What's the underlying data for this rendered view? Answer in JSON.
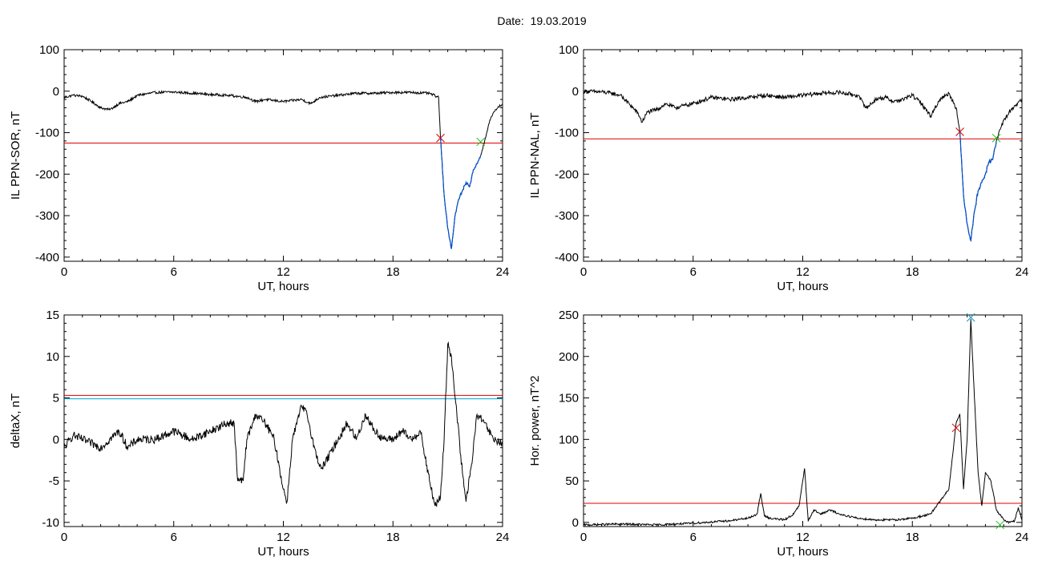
{
  "header": {
    "date_label": "Date:",
    "date_value": "19.03.2019"
  },
  "colors": {
    "trace": "#000000",
    "threshold": "#e00000",
    "threshold2": "#00a0c8",
    "storm": "#0050d0",
    "mark_start": "#d00000",
    "mark_end": "#20c020",
    "mark_peak": "#1090c0"
  },
  "chart_data": [
    {
      "type": "line",
      "id": "ppn-sor",
      "xlabel": "UT, hours",
      "ylabel": "IL PPN-SOR, nT",
      "xlim": [
        0,
        24
      ],
      "ylim": [
        -410,
        100
      ],
      "xticks": [
        "0",
        "6",
        "12",
        "18",
        "24"
      ],
      "yticks": [
        "100",
        "0",
        "-100",
        "-200",
        "-300",
        "-400"
      ],
      "ytick_values": [
        100,
        0,
        -100,
        -200,
        -300,
        -400
      ],
      "series": [
        {
          "x": [
            0,
            0.5,
            1,
            1.5,
            2,
            2.5,
            3,
            3.5,
            4,
            5,
            6,
            7,
            8,
            9,
            10,
            10.5,
            11,
            12,
            13,
            13.5,
            14,
            15,
            16,
            17,
            18,
            19,
            20,
            20.5,
            20.6,
            20.8,
            21,
            21.2,
            21.4,
            21.6,
            21.8,
            22,
            22.2,
            22.4,
            22.6,
            22.8,
            23,
            23.3,
            23.6,
            24
          ],
          "y": [
            -15,
            -10,
            -12,
            -25,
            -40,
            -45,
            -30,
            -25,
            -10,
            -3,
            -2,
            -5,
            -8,
            -10,
            -15,
            -25,
            -20,
            -25,
            -20,
            -30,
            -15,
            -10,
            -5,
            -5,
            -3,
            -3,
            -5,
            -15,
            -110,
            -250,
            -330,
            -380,
            -300,
            -260,
            -240,
            -220,
            -230,
            -190,
            -175,
            -155,
            -125,
            -70,
            -45,
            -30
          ],
          "noise": 3
        }
      ],
      "storm_segment": [
        20.6,
        22.8
      ],
      "threshold": -125,
      "mark_start": [
        20.6,
        -113
      ],
      "mark_end": [
        22.8,
        -122
      ]
    },
    {
      "type": "line",
      "id": "ppn-nal",
      "xlabel": "UT, hours",
      "ylabel": "IL PPN-NAL, nT",
      "xlim": [
        0,
        24
      ],
      "ylim": [
        -410,
        100
      ],
      "xticks": [
        "0",
        "6",
        "12",
        "18",
        "24"
      ],
      "yticks": [
        "100",
        "0",
        "-100",
        "-200",
        "-300",
        "-400"
      ],
      "ytick_values": [
        100,
        0,
        -100,
        -200,
        -300,
        -400
      ],
      "series": [
        {
          "x": [
            0,
            1,
            1.5,
            2,
            2.5,
            3,
            3.2,
            3.5,
            4,
            4.5,
            5,
            6,
            7,
            8,
            9,
            10,
            11,
            12,
            13,
            14,
            15,
            15.5,
            16,
            16.5,
            17,
            17.5,
            18,
            18.5,
            19,
            19.5,
            20,
            20.4,
            20.6,
            20.8,
            21,
            21.2,
            21.4,
            21.6,
            21.8,
            22,
            22.2,
            22.4,
            22.6,
            23,
            23.5,
            24
          ],
          "y": [
            0,
            -2,
            -5,
            -10,
            -30,
            -55,
            -75,
            -50,
            -45,
            -30,
            -40,
            -30,
            -15,
            -20,
            -15,
            -10,
            -15,
            -10,
            -5,
            -3,
            -10,
            -40,
            -20,
            -15,
            -25,
            -20,
            -10,
            -30,
            -60,
            -20,
            -5,
            -40,
            -100,
            -250,
            -320,
            -360,
            -290,
            -240,
            -220,
            -200,
            -170,
            -165,
            -120,
            -70,
            -40,
            -20
          ],
          "noise": 5
        }
      ],
      "storm_segment": [
        20.6,
        22.6
      ],
      "threshold": -115,
      "mark_start": [
        20.6,
        -98
      ],
      "mark_end": [
        22.6,
        -113
      ]
    },
    {
      "type": "line",
      "id": "deltax",
      "xlabel": "UT, hours",
      "ylabel": "deltaX, nT",
      "xlim": [
        0,
        24
      ],
      "ylim": [
        -10.5,
        15
      ],
      "xticks": [
        "0",
        "6",
        "12",
        "18",
        "24"
      ],
      "yticks": [
        "15",
        "10",
        "5",
        "0",
        "-5",
        "-10"
      ],
      "ytick_values": [
        15,
        10,
        5,
        0,
        -5,
        -10
      ],
      "series": [
        {
          "x": [
            0,
            0.5,
            1,
            2,
            3,
            3.5,
            4,
            5,
            6,
            7,
            8,
            9,
            9.3,
            9.5,
            9.8,
            10,
            10.5,
            11,
            11.5,
            12,
            12.2,
            12.5,
            13,
            13.3,
            13.8,
            14.1,
            14.5,
            15,
            15.5,
            16,
            16.5,
            17,
            17.5,
            18,
            18.5,
            19,
            19.5,
            20,
            20.3,
            20.6,
            20.8,
            21,
            21.2,
            21.5,
            21.8,
            22,
            22.3,
            22.6,
            23,
            23.5,
            24
          ],
          "y": [
            -1,
            0.5,
            0,
            -1,
            1,
            -1,
            0,
            0,
            1,
            0,
            1,
            2,
            2,
            -5,
            -5,
            0,
            3,
            2,
            0,
            -6,
            -7.5,
            0,
            4,
            3,
            -2,
            -3.5,
            -2,
            0,
            2,
            0,
            3,
            1,
            0,
            0,
            1,
            0,
            1,
            -5,
            -8,
            -7,
            0,
            11.5,
            10,
            3,
            -4,
            -7.5,
            -3,
            3,
            2,
            0,
            -0.5
          ],
          "noise": 0.5
        }
      ],
      "threshold": 5.3,
      "threshold2": 4.9
    },
    {
      "type": "line",
      "id": "hor-power",
      "xlabel": "UT, hours",
      "ylabel": "Hor. power, nT^2",
      "xlim": [
        0,
        24
      ],
      "ylim": [
        -5,
        250
      ],
      "xticks": [
        "0",
        "6",
        "12",
        "18",
        "24"
      ],
      "yticks": [
        "250",
        "200",
        "150",
        "100",
        "50",
        "0"
      ],
      "ytick_values": [
        250,
        200,
        150,
        100,
        50,
        0
      ],
      "series": [
        {
          "x": [
            0,
            2,
            4,
            6,
            8,
            9,
            9.5,
            9.7,
            9.9,
            10.2,
            11,
            11.5,
            11.8,
            12.1,
            12.3,
            12.6,
            13,
            13.5,
            14,
            15,
            16,
            17,
            18,
            19,
            20,
            20.2,
            20.4,
            20.6,
            20.8,
            21,
            21.2,
            21.4,
            21.6,
            21.8,
            22,
            22.3,
            22.6,
            23,
            23.3,
            23.6,
            23.8,
            24
          ],
          "y": [
            -3,
            -2,
            -3,
            -1,
            2,
            5,
            10,
            35,
            8,
            5,
            3,
            10,
            20,
            65,
            2,
            15,
            10,
            15,
            10,
            5,
            3,
            3,
            5,
            10,
            40,
            80,
            120,
            130,
            40,
            100,
            245,
            150,
            60,
            20,
            60,
            50,
            15,
            3,
            0,
            2,
            18,
            3
          ],
          "noise": 1.2
        }
      ],
      "threshold": 23,
      "mark_start": [
        20.4,
        114
      ],
      "mark_end": [
        22.8,
        -3
      ],
      "mark_peak": [
        21.2,
        247
      ]
    }
  ]
}
